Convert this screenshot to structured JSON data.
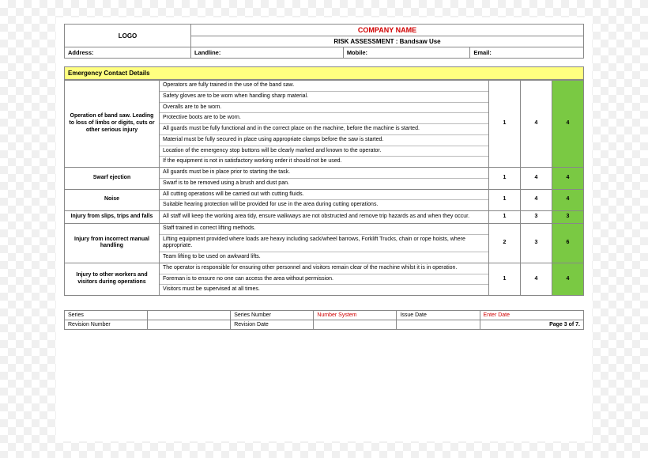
{
  "header": {
    "logo": "LOGO",
    "company": "COMPANY NAME",
    "subtitle": "RISK ASSESSMENT : Bandsaw Use",
    "address_label": "Address:",
    "landline_label": "Landline:",
    "mobile_label": "Mobile:",
    "email_label": "Email:"
  },
  "emergency_header": "Emergency Contact Details",
  "rows": [
    {
      "hazard": "Operation of band saw. Leading to loss of limbs or digits, cuts or other serious injury",
      "controls": [
        "Operators are fully trained in the use of the band saw.",
        "Safety gloves are to be worn when handling sharp material.",
        "Overalls are to be worn.",
        "Protective boots are to be worn.",
        "All guards must be fully functional and in the correct place on the machine, before the machine is started.",
        "Material must be fully secured in place using appropriate clamps before the saw is started.",
        "Location of the emergency stop buttons will be clearly marked and known to the operator.",
        "If the equipment is not in satisfactory working order it should not be used."
      ],
      "a": "1",
      "b": "4",
      "c": "4"
    },
    {
      "hazard": "Swarf ejection",
      "controls": [
        "All guards must be in place prior to starting the task.",
        "Swarf is to be removed using a brush and dust pan."
      ],
      "a": "1",
      "b": "4",
      "c": "4"
    },
    {
      "hazard": "Noise",
      "controls": [
        "All cutting operations will be carried out with cutting fluids.",
        "Suitable hearing protection will be provided for use in the area during cutting operations."
      ],
      "a": "1",
      "b": "4",
      "c": "4"
    },
    {
      "hazard": "Injury from slips, trips and falls",
      "controls": [
        "All staff will keep the working area tidy, ensure walkways are not obstructed and remove trip hazards as and when they occur."
      ],
      "a": "1",
      "b": "3",
      "c": "3"
    },
    {
      "hazard": "Injury from incorrect manual handling",
      "controls": [
        "Staff trained in correct lifting methods.",
        "Lifting equipment provided where loads are heavy including sack/wheel barrows, Forklift Trucks, chain or rope hoists, where appropriate.",
        "Team lifting to be used on awkward lifts."
      ],
      "a": "2",
      "b": "3",
      "c": "6"
    },
    {
      "hazard": "Injury to other workers and visitors during operations",
      "controls": [
        "The operator is responsible for ensuring other personnel and visitors remain clear of the machine whilst it is in operation.",
        "Foreman is to ensure no one can access the area without permission.",
        "Visitors must be supervised at all times."
      ],
      "a": "1",
      "b": "4",
      "c": "4"
    }
  ],
  "footer": {
    "series": "Series",
    "series_number": "Series Number",
    "number_system": "Number System",
    "issue_date": "Issue Date",
    "enter_date": "Enter Date",
    "revision_number": "Revision Number",
    "revision_date": "Revision Date",
    "page": "Page 3 of 7."
  },
  "colors": {
    "emg_bg": "#ffff80",
    "rating_bg": "#7ac943",
    "red": "#d00000"
  }
}
